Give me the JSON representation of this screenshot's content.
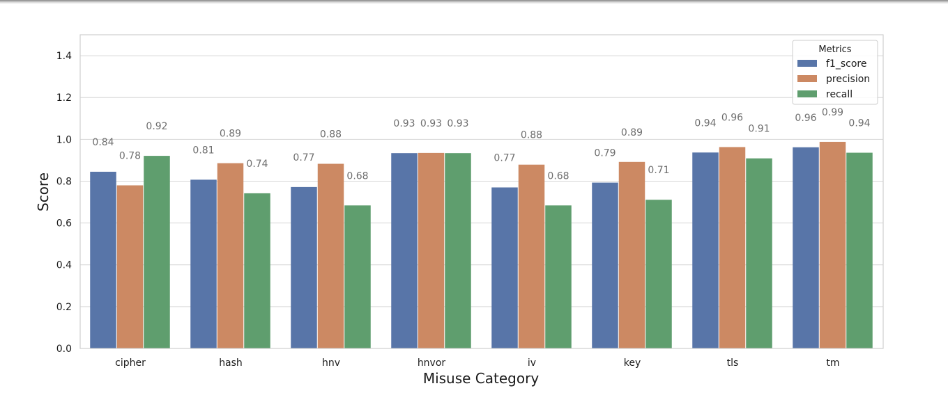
{
  "chart_data": {
    "type": "bar",
    "xlabel": "Misuse Category",
    "ylabel": "Score",
    "ylim": [
      0,
      1.5
    ],
    "yticks": [
      "0.0",
      "0.2",
      "0.4",
      "0.6",
      "0.8",
      "1.0",
      "1.2",
      "1.4"
    ],
    "categories": [
      "cipher",
      "hash",
      "hnv",
      "hnvor",
      "iv",
      "key",
      "tls",
      "tm"
    ],
    "legend": {
      "title": "Metrics",
      "placement": "top-right"
    },
    "grid": true,
    "series": [
      {
        "name": "f1_score",
        "color": "#5875a8",
        "values": [
          0.845,
          0.807,
          0.772,
          0.934,
          0.77,
          0.793,
          0.937,
          0.962
        ],
        "labels": [
          "0.84",
          "0.81",
          "0.77",
          "0.93",
          "0.77",
          "0.79",
          "0.94",
          "0.96"
        ]
      },
      {
        "name": "precision",
        "color": "#cc8963",
        "values": [
          0.78,
          0.886,
          0.883,
          0.935,
          0.879,
          0.892,
          0.963,
          0.988
        ],
        "labels": [
          "0.78",
          "0.89",
          "0.88",
          "0.93",
          "0.88",
          "0.89",
          "0.96",
          "0.99"
        ]
      },
      {
        "name": "recall",
        "color": "#5f9e6e",
        "values": [
          0.921,
          0.742,
          0.684,
          0.934,
          0.684,
          0.711,
          0.909,
          0.936
        ],
        "labels": [
          "0.92",
          "0.74",
          "0.68",
          "0.93",
          "0.68",
          "0.71",
          "0.91",
          "0.94"
        ]
      }
    ]
  }
}
